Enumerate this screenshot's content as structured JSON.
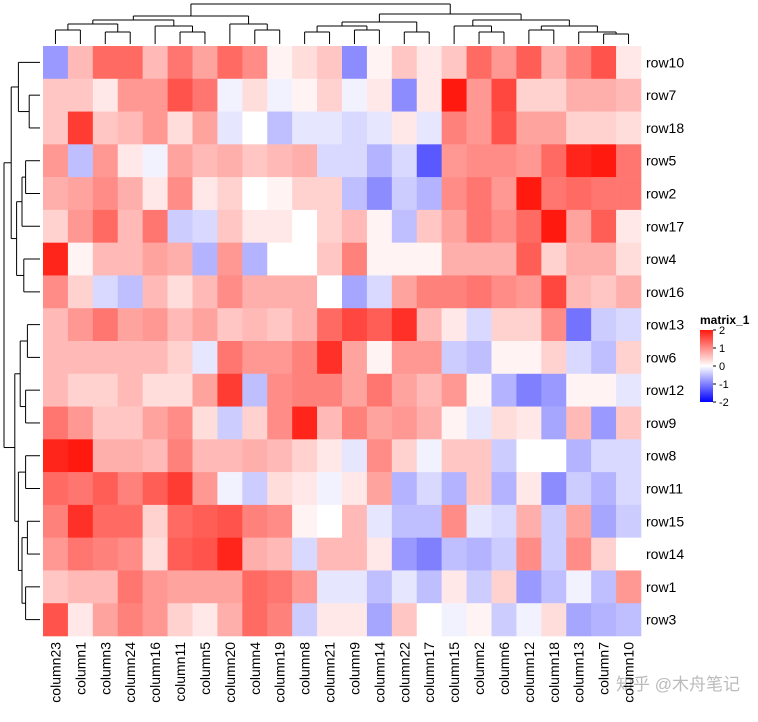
{
  "chart_data": {
    "type": "heatmap",
    "legend_title": "matrix_1",
    "rows": [
      "row10",
      "row7",
      "row18",
      "row5",
      "row2",
      "row17",
      "row4",
      "row16",
      "row13",
      "row6",
      "row12",
      "row9",
      "row8",
      "row11",
      "row15",
      "row14",
      "row1",
      "row3"
    ],
    "columns": [
      "column23",
      "column1",
      "column3",
      "column24",
      "column16",
      "column11",
      "column5",
      "column20",
      "column4",
      "column19",
      "column8",
      "column21",
      "column9",
      "column14",
      "column22",
      "column17",
      "column15",
      "column2",
      "column6",
      "column12",
      "column18",
      "column13",
      "column7",
      "column10"
    ],
    "values": [
      [
        -0.8,
        0.6,
        1.3,
        1.3,
        0.6,
        1.2,
        0.8,
        1.3,
        1.0,
        0.1,
        0.3,
        0.5,
        -0.9,
        0.1,
        0.5,
        0.2,
        0.5,
        1.3,
        0.9,
        1.4,
        0.7,
        1.1,
        1.5,
        0.2
      ],
      [
        0.5,
        0.5,
        0.2,
        0.9,
        0.9,
        1.5,
        1.2,
        -0.1,
        0.3,
        -0.1,
        0.1,
        0.4,
        -0.1,
        0.2,
        -0.9,
        0.2,
        2.2,
        0.9,
        1.6,
        0.4,
        0.4,
        0.7,
        0.7,
        0.6
      ],
      [
        0.5,
        1.7,
        0.5,
        0.6,
        0.9,
        0.3,
        0.8,
        -0.2,
        0.0,
        -0.5,
        -0.2,
        -0.2,
        -0.3,
        -0.2,
        0.2,
        -0.2,
        1.1,
        0.9,
        1.5,
        0.8,
        0.8,
        0.4,
        0.4,
        0.3
      ],
      [
        0.9,
        -0.5,
        0.9,
        0.2,
        -0.1,
        0.8,
        0.6,
        0.7,
        0.5,
        0.6,
        0.7,
        -0.3,
        -0.3,
        -0.6,
        -0.3,
        -1.3,
        0.9,
        1.0,
        1.0,
        0.9,
        1.3,
        1.9,
        2.1,
        1.2
      ],
      [
        0.7,
        0.8,
        1.0,
        0.7,
        0.2,
        1.0,
        0.2,
        0.4,
        0.0,
        0.1,
        0.4,
        0.4,
        -0.5,
        -0.9,
        -0.4,
        -0.6,
        1.0,
        1.2,
        0.9,
        2.0,
        1.2,
        1.3,
        1.2,
        1.2
      ],
      [
        0.4,
        0.9,
        1.3,
        0.6,
        1.2,
        -0.4,
        -0.3,
        0.5,
        0.2,
        0.2,
        0.0,
        0.4,
        0.6,
        0.1,
        -0.5,
        0.5,
        0.8,
        1.2,
        1.0,
        1.3,
        2.1,
        0.8,
        1.4,
        0.2
      ],
      [
        1.9,
        0.1,
        0.6,
        0.6,
        0.8,
        0.7,
        -0.6,
        0.9,
        -0.6,
        0.0,
        0.0,
        0.5,
        1.1,
        0.1,
        0.1,
        0.1,
        0.7,
        0.7,
        0.7,
        1.4,
        0.4,
        0.7,
        0.7,
        0.3
      ],
      [
        1.0,
        0.4,
        -0.3,
        -0.5,
        0.6,
        0.3,
        0.6,
        1.0,
        0.7,
        0.7,
        0.7,
        0.0,
        -0.7,
        -0.3,
        0.8,
        1.1,
        1.1,
        1.2,
        1.0,
        0.9,
        1.6,
        0.6,
        0.5,
        0.7
      ],
      [
        0.6,
        0.9,
        1.2,
        0.8,
        0.9,
        0.6,
        0.8,
        0.5,
        0.6,
        0.5,
        0.7,
        1.3,
        1.6,
        1.4,
        1.8,
        0.6,
        0.2,
        -0.3,
        0.4,
        0.4,
        1.0,
        -1.1,
        -0.4,
        -0.3
      ],
      [
        0.6,
        0.6,
        0.6,
        0.6,
        0.6,
        0.4,
        -0.2,
        1.2,
        0.9,
        0.9,
        1.1,
        1.8,
        0.8,
        0.1,
        0.9,
        0.9,
        -0.4,
        -0.5,
        0.1,
        0.1,
        0.4,
        -0.3,
        -0.5,
        0.4
      ],
      [
        0.6,
        0.4,
        0.4,
        0.6,
        0.3,
        0.3,
        0.8,
        1.7,
        -0.5,
        1.0,
        1.1,
        1.1,
        0.8,
        1.2,
        0.8,
        0.6,
        0.9,
        0.1,
        -0.6,
        -1.0,
        -0.8,
        0.1,
        0.1,
        -0.2
      ],
      [
        1.2,
        0.9,
        0.5,
        0.5,
        0.8,
        1.0,
        0.3,
        -0.4,
        0.4,
        1.0,
        1.9,
        0.6,
        1.1,
        0.8,
        0.9,
        0.7,
        0.1,
        -0.2,
        0.3,
        0.2,
        -0.7,
        0.6,
        -0.8,
        0.5
      ],
      [
        1.9,
        2.1,
        0.7,
        0.7,
        0.6,
        1.1,
        0.6,
        0.6,
        0.7,
        0.6,
        0.4,
        0.2,
        -0.2,
        1.0,
        0.4,
        -0.1,
        0.5,
        0.5,
        -0.4,
        0.0,
        0.0,
        -0.6,
        -0.3,
        -0.3
      ],
      [
        1.3,
        1.2,
        1.4,
        1.1,
        1.4,
        1.7,
        0.9,
        -0.1,
        -0.4,
        0.3,
        0.2,
        -0.1,
        0.2,
        0.8,
        -0.6,
        -0.3,
        -0.6,
        0.5,
        -0.6,
        0.2,
        -0.9,
        -0.4,
        -0.6,
        -0.3
      ],
      [
        1.1,
        1.8,
        1.3,
        1.3,
        0.4,
        1.3,
        1.4,
        1.5,
        1.1,
        1.0,
        0.1,
        0.0,
        0.6,
        -0.2,
        -0.5,
        -0.5,
        1.0,
        -0.2,
        -0.3,
        0.7,
        -0.4,
        0.8,
        -0.7,
        -0.4
      ],
      [
        0.9,
        1.2,
        1.1,
        1.0,
        0.3,
        1.4,
        1.5,
        1.9,
        0.7,
        0.6,
        -0.3,
        0.6,
        0.6,
        0.2,
        -0.8,
        -1.0,
        -0.5,
        -0.6,
        -0.4,
        1.0,
        -0.4,
        1.0,
        0.4,
        0.0
      ],
      [
        0.5,
        0.6,
        0.6,
        1.2,
        0.9,
        0.8,
        0.8,
        0.8,
        1.3,
        1.2,
        0.9,
        -0.2,
        -0.2,
        -0.5,
        -0.2,
        -0.5,
        0.2,
        -0.4,
        0.4,
        -0.8,
        -0.5,
        -0.1,
        -0.5,
        0.9
      ],
      [
        1.5,
        0.2,
        0.8,
        1.1,
        0.9,
        0.4,
        0.2,
        0.7,
        1.3,
        1.1,
        -0.4,
        0.2,
        0.2,
        -0.7,
        0.5,
        0.0,
        -0.1,
        0.1,
        -0.4,
        -0.1,
        0.3,
        -0.7,
        -0.6,
        -0.5
      ]
    ],
    "clim": [
      -2,
      2
    ],
    "legend_ticks": [
      2,
      1,
      0,
      -1,
      -2
    ],
    "watermark": "知乎 @木舟笔记"
  }
}
